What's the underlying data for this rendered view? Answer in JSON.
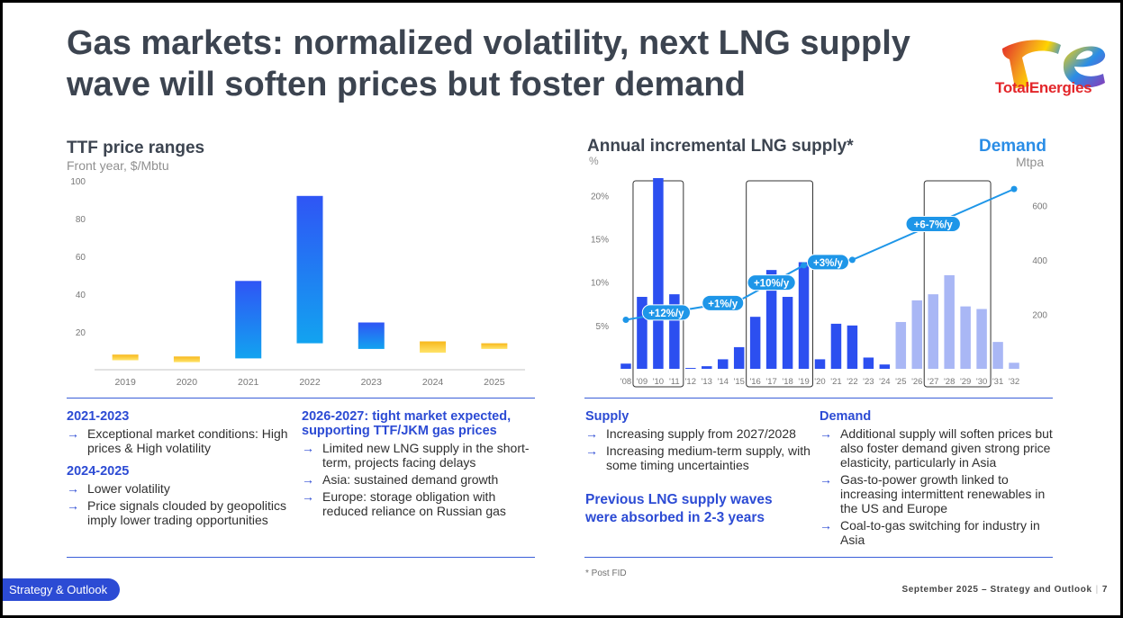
{
  "title": "Gas markets: normalized volatility, next LNG supply wave will soften prices but foster demand",
  "logo": {
    "text": "TotalEnergies",
    "colors": [
      "#e3262a",
      "#f39a1e",
      "#ffd400",
      "#2a8de6",
      "#8a3ab9"
    ]
  },
  "left_chart": {
    "title": "TTF price ranges",
    "subtitle": "Front year, $/Mbtu"
  },
  "right_chart": {
    "title": "Annual incremental LNG supply*",
    "unit_left": "%",
    "demand_title": "Demand",
    "demand_unit": "Mtpa"
  },
  "chart_data": [
    {
      "type": "bar",
      "categories": [
        "2019",
        "2020",
        "2021",
        "2022",
        "2023",
        "2024",
        "2025"
      ],
      "series": [
        {
          "low": [
            5,
            4,
            6,
            14,
            11,
            9,
            11
          ],
          "high": [
            8,
            7,
            47,
            92,
            25,
            15,
            14
          ]
        }
      ],
      "y_ticks": [
        20,
        40,
        60,
        80,
        100
      ],
      "ylim": [
        0,
        100
      ],
      "colors": {
        "blue_top": "#2f55f5",
        "blue_bottom": "#12a3f0",
        "yellow_top": "#f7b81c",
        "yellow_bottom": "#ffe46a"
      }
    },
    {
      "type": "bar",
      "categories": [
        "'08",
        "'09",
        "'10",
        "'11",
        "'12",
        "'13",
        "'14",
        "'15",
        "'16",
        "'17",
        "'18",
        "'19",
        "'20",
        "'21",
        "'22",
        "'23",
        "'24",
        "'25",
        "'26",
        "'27",
        "'28",
        "'29",
        "'30",
        "'31",
        "'32"
      ],
      "series": [
        {
          "values": [
            0.6,
            8.3,
            22.0,
            8.6,
            0.1,
            0.3,
            1.1,
            2.5,
            6.0,
            11.4,
            8.3,
            12.3,
            1.1,
            5.2,
            5.0,
            1.3,
            0.5,
            5.4,
            7.9,
            8.6,
            10.8,
            7.2,
            6.9,
            3.1,
            0.7
          ],
          "projected_from_index": 17
        }
      ],
      "y_ticks_left": [
        "5%",
        "10%",
        "15%",
        "20%"
      ],
      "ylim_left": [
        0,
        22
      ],
      "y_ticks_right": [
        200,
        400,
        600
      ],
      "ylim_right": [
        0,
        700
      ],
      "demand_line": {
        "x": [
          "'08",
          "'13",
          "'15",
          "'19",
          "'22",
          "'32"
        ],
        "values": [
          180,
          230,
          250,
          380,
          400,
          660
        ]
      },
      "annotations": [
        "+12%/y",
        "+1%/y",
        "+10%/y",
        "+3%/y",
        "+6-7%/y"
      ],
      "highlight_boxes": [
        [
          "'09",
          "'11"
        ],
        [
          "'16",
          "'19"
        ],
        [
          "'27",
          "'30"
        ]
      ],
      "colors": {
        "actual": "#2c4ff0",
        "projected": "#a9b7f5",
        "demand": "#1e96e8"
      }
    }
  ],
  "left_text": {
    "col1": {
      "h1": "2021-2023",
      "b1": "Exceptional market conditions: High prices & High volatility",
      "h2": "2024-2025",
      "b2": "Lower volatility",
      "b3": "Price signals clouded by geopolitics imply lower trading opportunities"
    },
    "col2": {
      "h1": "2026-2027: tight market expected, supporting TTF/JKM gas prices",
      "b1": "Limited new LNG supply in the short-term, projects facing delays",
      "b2": "Asia: sustained demand growth",
      "b3": "Europe: storage obligation with reduced reliance on Russian gas"
    }
  },
  "right_text": {
    "supply": {
      "h": "Supply",
      "b1": "Increasing supply from 2027/2028",
      "b2": "Increasing medium-term supply, with some timing uncertainties",
      "callout": "Previous LNG supply waves were absorbed in 2-3 years"
    },
    "demand": {
      "h": "Demand",
      "b1": "Additional supply will soften prices but also foster demand given strong price elasticity, particularly in Asia",
      "b2": "Gas-to-power growth linked to increasing intermittent renewables in the US and Europe",
      "b3": "Coal-to-gas switching for industry in Asia"
    }
  },
  "footnote": "* Post FID",
  "footer": {
    "pill": "Strategy & Outlook",
    "text": "September 2025 – Strategy and Outlook",
    "page": "7"
  }
}
